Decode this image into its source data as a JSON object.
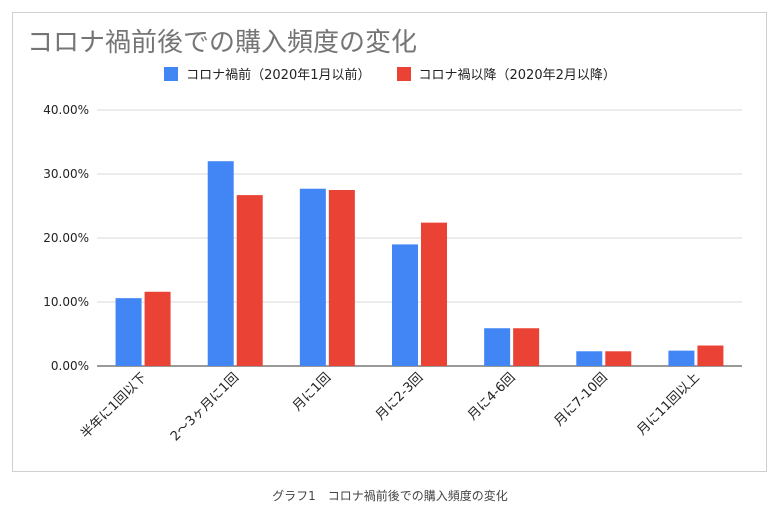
{
  "chart_data": {
    "type": "bar",
    "title": "コロナ禍前後での購入頻度の変化",
    "categories": [
      "半年に1回以下",
      "2〜3ヶ月に1回",
      "月に1回",
      "月に2-3回",
      "月に4-6回",
      "月に7-10回",
      "月に11回以上"
    ],
    "series": [
      {
        "name": "コロナ禍前（2020年1月以前）",
        "color": "#4285f4",
        "values": [
          10.6,
          32.0,
          27.7,
          19.0,
          5.9,
          2.3,
          2.4
        ]
      },
      {
        "name": "コロナ禍以降（2020年2月以降）",
        "color": "#ea4335",
        "values": [
          11.6,
          26.7,
          27.5,
          22.4,
          5.9,
          2.3,
          3.2
        ]
      }
    ],
    "yticks": [
      "0.00%",
      "10.00%",
      "20.00%",
      "30.00%",
      "40.00%"
    ],
    "ylim": [
      0,
      40
    ],
    "grid": true,
    "legend_position": "top"
  },
  "caption": "グラフ1　コロナ禍前後での購入頻度の変化"
}
